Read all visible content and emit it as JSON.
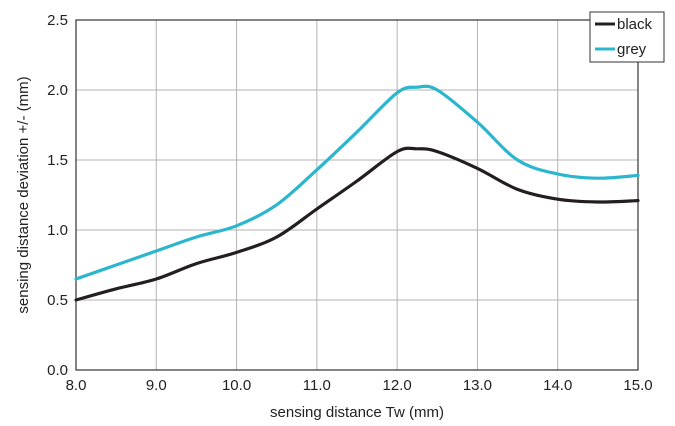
{
  "chart_data": {
    "type": "line",
    "title": "",
    "xlabel": "sensing distance Tw (mm)",
    "ylabel": "sensing distance deviation +/- (mm)",
    "xlim": [
      8.0,
      15.0
    ],
    "ylim": [
      0.0,
      2.5
    ],
    "xticks": [
      "8.0",
      "9.0",
      "10.0",
      "11.0",
      "12.0",
      "13.0",
      "14.0",
      "15.0"
    ],
    "yticks": [
      "0.0",
      "0.5",
      "1.0",
      "1.5",
      "2.0",
      "2.5"
    ],
    "grid": true,
    "legend_position": "top-right",
    "series": [
      {
        "name": "black",
        "color": "#231f20",
        "x": [
          8.0,
          8.5,
          9.0,
          9.5,
          10.0,
          10.5,
          11.0,
          11.5,
          12.0,
          12.25,
          12.5,
          13.0,
          13.5,
          14.0,
          14.5,
          15.0
        ],
        "y": [
          0.5,
          0.58,
          0.65,
          0.76,
          0.84,
          0.95,
          1.15,
          1.35,
          1.56,
          1.58,
          1.56,
          1.44,
          1.29,
          1.22,
          1.2,
          1.21
        ]
      },
      {
        "name": "grey",
        "color": "#2cb6ce",
        "x": [
          8.0,
          8.5,
          9.0,
          9.5,
          10.0,
          10.5,
          11.0,
          11.5,
          12.0,
          12.25,
          12.5,
          13.0,
          13.5,
          14.0,
          14.5,
          15.0
        ],
        "y": [
          0.65,
          0.75,
          0.85,
          0.95,
          1.03,
          1.18,
          1.43,
          1.7,
          1.98,
          2.02,
          2.0,
          1.77,
          1.5,
          1.4,
          1.37,
          1.39
        ]
      }
    ]
  }
}
